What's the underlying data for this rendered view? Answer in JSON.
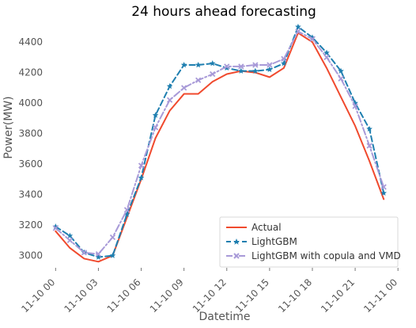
{
  "chart_data": {
    "type": "line",
    "title": "24 hours ahead forecasting",
    "xlabel": "Datetime",
    "ylabel": "Power(MW)",
    "x_ticks": [
      "11-10 00",
      "11-10 03",
      "11-10 06",
      "11-10 09",
      "11-10 12",
      "11-10 15",
      "11-10 18",
      "11-10 21",
      "11-11 00"
    ],
    "y_ticks": [
      3000,
      3200,
      3400,
      3600,
      3800,
      4000,
      4200,
      4400
    ],
    "xlim": [
      -0.35,
      24.1
    ],
    "ylim": [
      2920,
      4520
    ],
    "grid": false,
    "legend_position": "lower-right",
    "x": [
      0,
      1,
      2,
      3,
      4,
      5,
      6,
      7,
      8,
      9,
      10,
      11,
      12,
      13,
      14,
      15,
      16,
      17,
      18,
      19,
      20,
      21,
      22,
      23
    ],
    "series": [
      {
        "name": "Actual",
        "color": "#f04a2e",
        "dash": "solid",
        "marker": "none",
        "values": [
          3160,
          3050,
          2980,
          2960,
          3000,
          3250,
          3500,
          3770,
          3950,
          4060,
          4060,
          4140,
          4190,
          4210,
          4200,
          4170,
          4230,
          4460,
          4400,
          4230,
          4040,
          3850,
          3620,
          3370
        ]
      },
      {
        "name": "LightGBM",
        "color": "#1f7fb0",
        "dash": "dashed",
        "marker": "star",
        "values": [
          3190,
          3130,
          3020,
          2990,
          3000,
          3270,
          3510,
          3920,
          4110,
          4250,
          4250,
          4260,
          4230,
          4210,
          4210,
          4220,
          4260,
          4500,
          4430,
          4330,
          4210,
          4000,
          3830,
          3410
        ]
      },
      {
        "name": "LightGBM with copula and VMD",
        "color": "#a89ad8",
        "dash": "dashdot",
        "marker": "x",
        "values": [
          3180,
          3100,
          3020,
          3010,
          3120,
          3300,
          3590,
          3840,
          4020,
          4100,
          4150,
          4190,
          4240,
          4240,
          4250,
          4250,
          4290,
          4470,
          4420,
          4300,
          4160,
          3980,
          3720,
          3450
        ]
      }
    ]
  }
}
